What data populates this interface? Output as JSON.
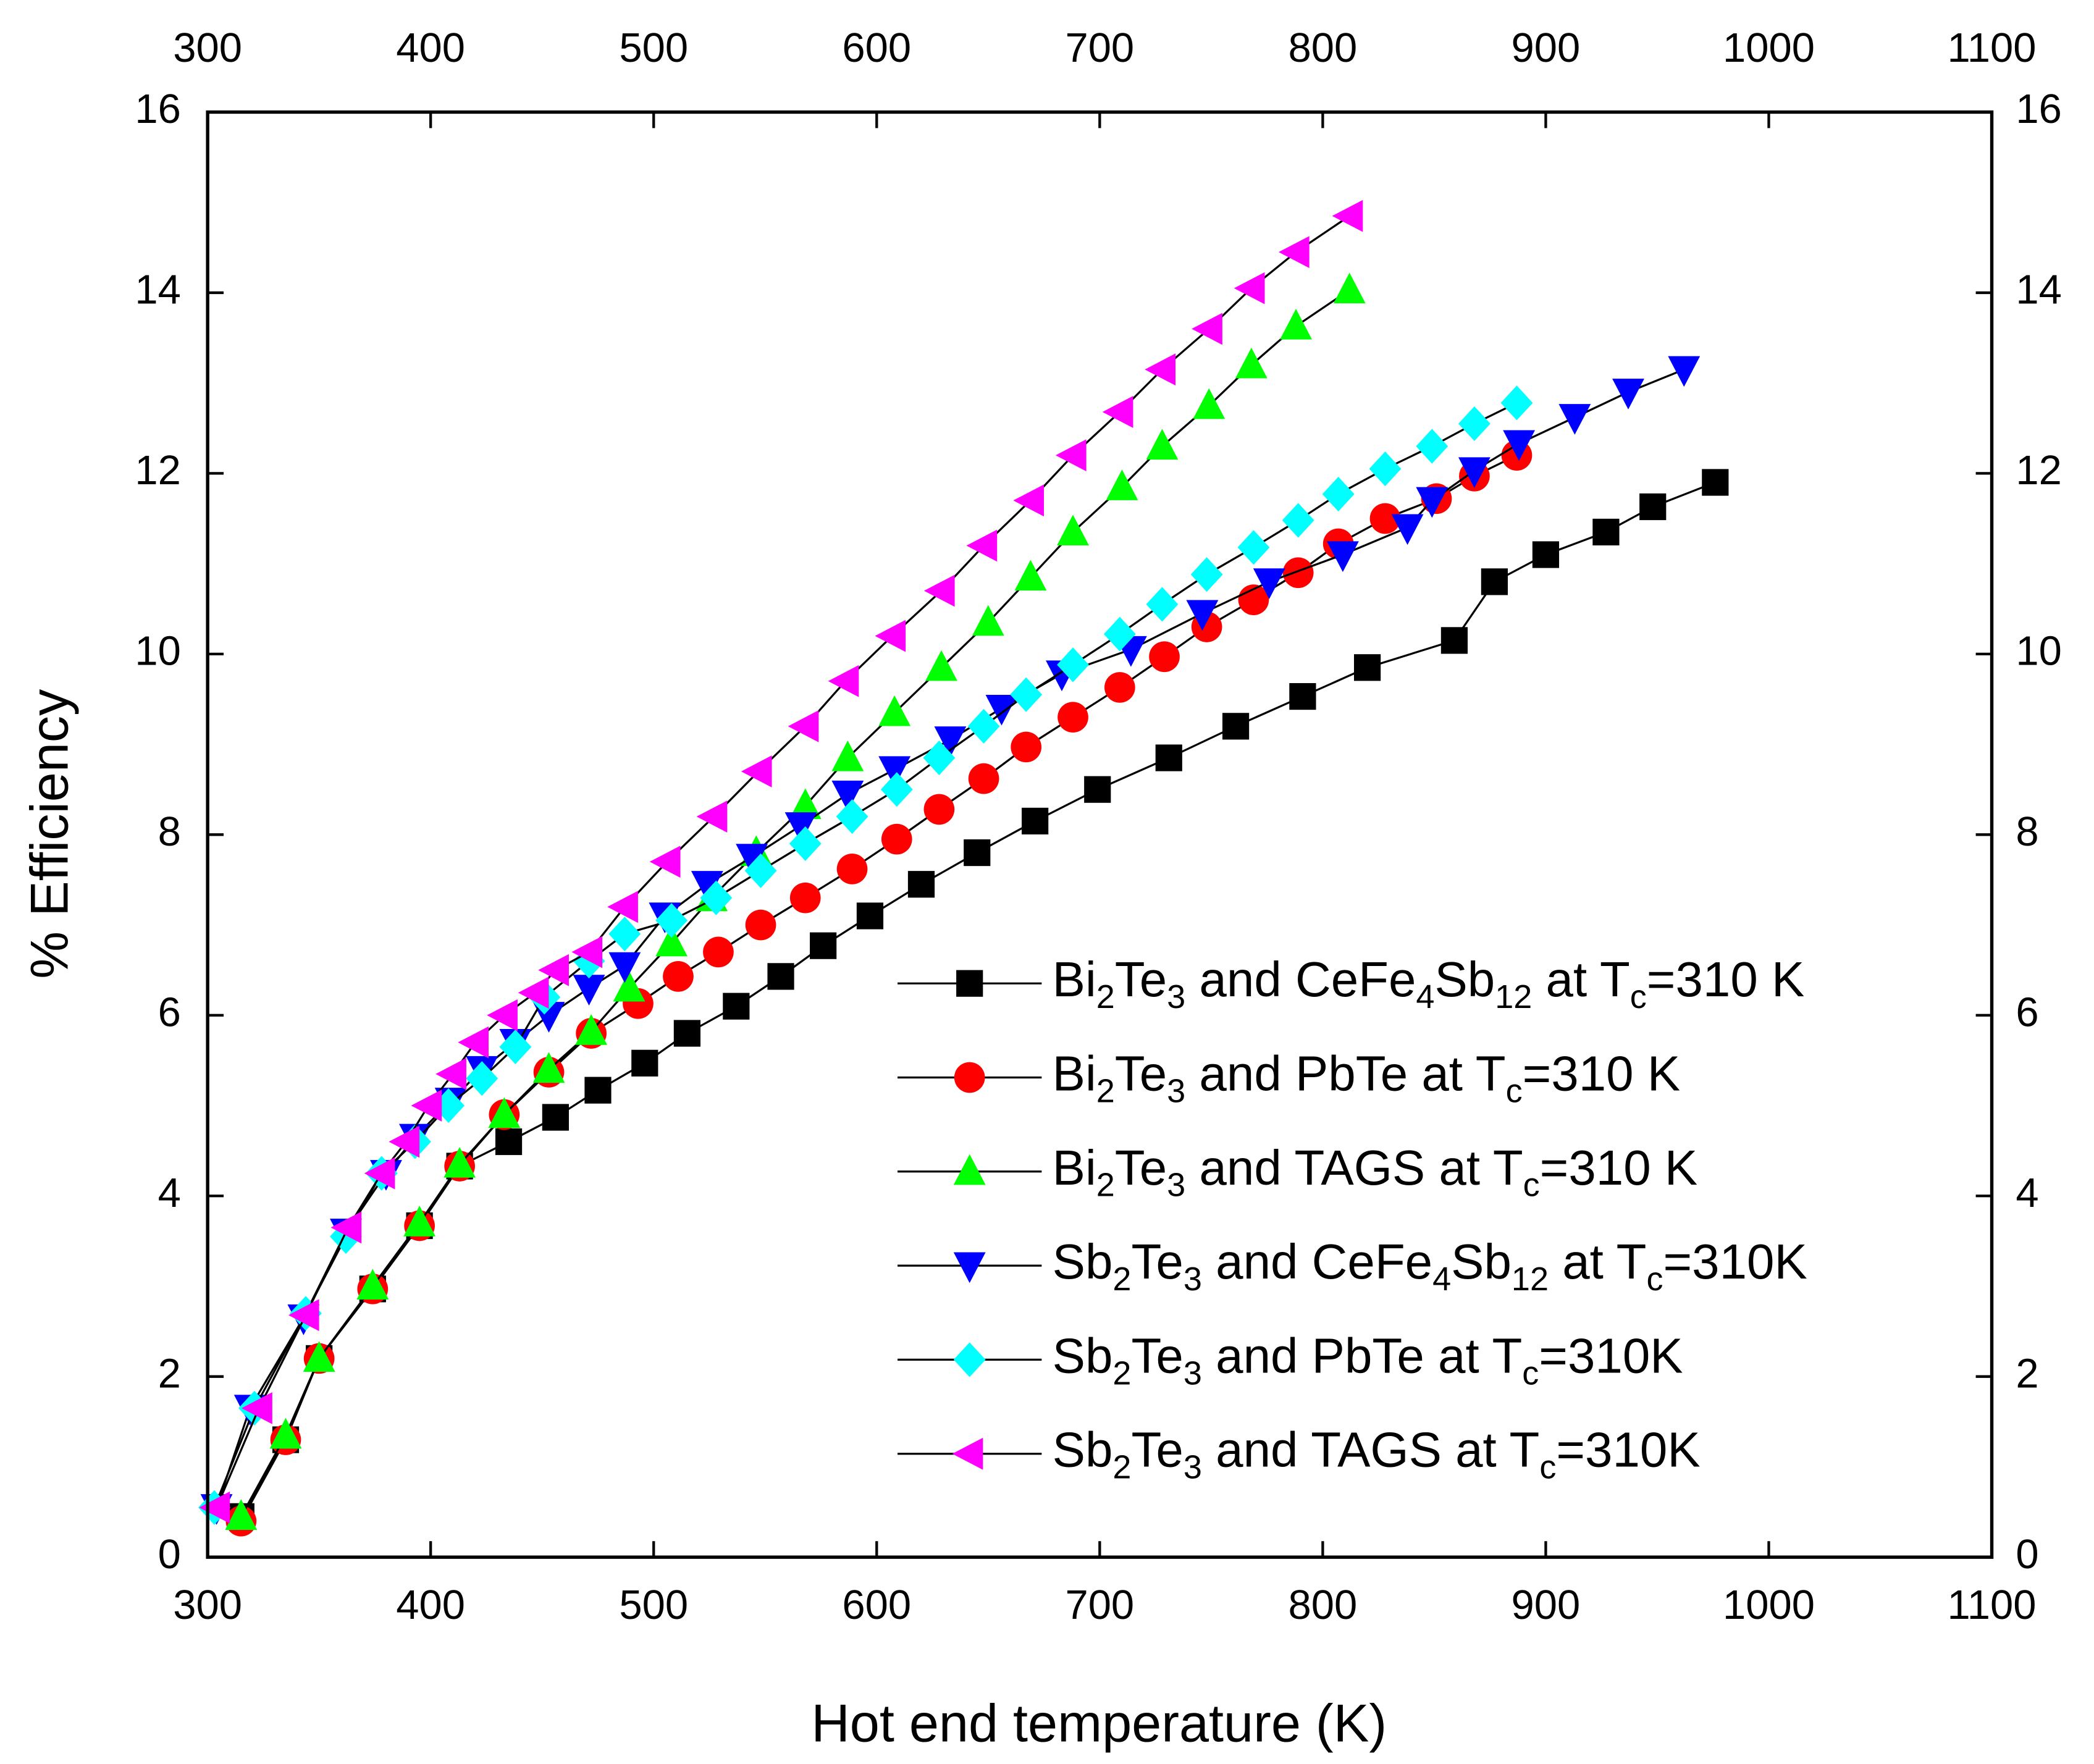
{
  "chart_data": {
    "type": "line",
    "xlabel": "Hot end temperature (K)",
    "ylabel": "% Efficiency",
    "xlim": [
      300,
      1100
    ],
    "xticks": [
      300,
      400,
      500,
      600,
      700,
      800,
      900,
      1000,
      1100
    ],
    "ylim": [
      0,
      16
    ],
    "yticks": [
      0,
      2,
      4,
      6,
      8,
      10,
      12,
      14,
      16
    ],
    "legend": "lower right",
    "series": [
      {
        "name": "Bi2Te3 and CeFe4Sb12 at Tc=310 K",
        "color": "#000000",
        "marker": "square",
        "x": [
          315,
          335,
          350,
          374,
          395,
          413,
          435,
          456,
          475,
          496,
          515,
          537,
          557,
          576,
          597,
          620,
          645,
          671,
          699,
          731,
          761,
          791,
          820,
          859,
          877,
          900,
          927,
          948,
          976
        ],
        "values": [
          0.45,
          1.3,
          2.2,
          2.97,
          3.67,
          4.33,
          4.6,
          4.87,
          5.17,
          5.47,
          5.8,
          6.1,
          6.43,
          6.77,
          7.1,
          7.45,
          7.8,
          8.15,
          8.5,
          8.85,
          9.2,
          9.53,
          9.85,
          10.15,
          10.8,
          11.1,
          11.35,
          11.63,
          11.9
        ]
      },
      {
        "name": "Bi2Te3 and PbTe at Tc=310 K",
        "color": "#ff0000",
        "marker": "circle",
        "x": [
          315,
          335,
          350,
          374,
          395,
          413,
          433,
          453,
          472,
          493,
          511,
          529,
          548,
          568,
          589,
          609,
          628,
          648,
          667,
          688,
          709,
          729,
          748,
          769,
          789,
          807,
          828,
          851,
          868,
          887
        ],
        "values": [
          0.4,
          1.3,
          2.2,
          2.97,
          3.67,
          4.33,
          4.9,
          5.37,
          5.8,
          6.13,
          6.43,
          6.7,
          7.0,
          7.3,
          7.62,
          7.95,
          8.28,
          8.62,
          8.97,
          9.3,
          9.63,
          9.97,
          10.3,
          10.6,
          10.9,
          11.22,
          11.5,
          11.72,
          11.97,
          12.2
        ]
      },
      {
        "name": "Bi2Te3 and TAGS at Tc=310 K",
        "color": "#00ff00",
        "marker": "triangle-up",
        "x": [
          315,
          335,
          350,
          374,
          395,
          413,
          433,
          453,
          472,
          489,
          508,
          526,
          546,
          568,
          587,
          608,
          629,
          650,
          669,
          688,
          710,
          728,
          749,
          768,
          788,
          812
        ],
        "values": [
          0.45,
          1.35,
          2.2,
          3.0,
          3.7,
          4.35,
          4.9,
          5.4,
          5.82,
          6.3,
          6.8,
          7.3,
          7.8,
          8.32,
          8.85,
          9.35,
          9.85,
          10.35,
          10.85,
          11.35,
          11.85,
          12.3,
          12.75,
          13.2,
          13.63,
          14.03
        ]
      },
      {
        "name": "Sb2Te3 and CeFe4Sb12 at Tc=310K",
        "color": "#0000ff",
        "marker": "triangle-down",
        "x": [
          304,
          319,
          343,
          362,
          380,
          393,
          409,
          423,
          438,
          453,
          471,
          487,
          505,
          524,
          544,
          566,
          587,
          608,
          633,
          656,
          683,
          714,
          746,
          776,
          809,
          838,
          849,
          868,
          888,
          913,
          937,
          962
        ],
        "values": [
          0.55,
          1.65,
          2.65,
          3.6,
          4.25,
          4.65,
          5.05,
          5.4,
          5.7,
          6.0,
          6.3,
          6.55,
          7.1,
          7.45,
          7.75,
          8.1,
          8.45,
          8.72,
          9.05,
          9.4,
          9.78,
          10.05,
          10.45,
          10.8,
          11.1,
          11.4,
          11.7,
          12.03,
          12.33,
          12.62,
          12.9,
          13.15
        ]
      },
      {
        "name": "Sb2Te3 and PbTe at Tc=310K",
        "color": "#00ffff",
        "marker": "diamond",
        "x": [
          303,
          321,
          344,
          362,
          378,
          393,
          408,
          423,
          438,
          451,
          471,
          487,
          508,
          528,
          548,
          568,
          589,
          609,
          628,
          648,
          667,
          688,
          709,
          728,
          748,
          769,
          789,
          807,
          828,
          849,
          868,
          887
        ],
        "values": [
          0.55,
          1.65,
          2.7,
          3.55,
          4.25,
          4.6,
          5.0,
          5.3,
          5.65,
          6.2,
          6.6,
          6.9,
          7.05,
          7.3,
          7.6,
          7.9,
          8.2,
          8.5,
          8.85,
          9.2,
          9.55,
          9.88,
          10.22,
          10.55,
          10.88,
          11.18,
          11.48,
          11.77,
          12.05,
          12.3,
          12.55,
          12.78
        ]
      },
      {
        "name": "Sb2Te3 and TAGS at Tc=310K",
        "color": "#ff00ff",
        "marker": "triangle-left",
        "x": [
          304,
          323,
          344,
          363,
          378,
          389,
          399,
          410,
          420,
          433,
          447,
          456,
          471,
          487,
          506,
          527,
          547,
          568,
          586,
          607,
          629,
          648,
          669,
          688,
          709,
          728,
          749,
          768,
          788,
          812
        ],
        "values": [
          0.55,
          1.65,
          2.68,
          3.65,
          4.25,
          4.6,
          5.0,
          5.35,
          5.7,
          6.0,
          6.25,
          6.5,
          6.7,
          7.2,
          7.7,
          8.2,
          8.7,
          9.2,
          9.7,
          10.2,
          10.7,
          11.2,
          11.7,
          12.2,
          12.68,
          13.15,
          13.6,
          14.05,
          14.45,
          14.85
        ]
      }
    ]
  }
}
